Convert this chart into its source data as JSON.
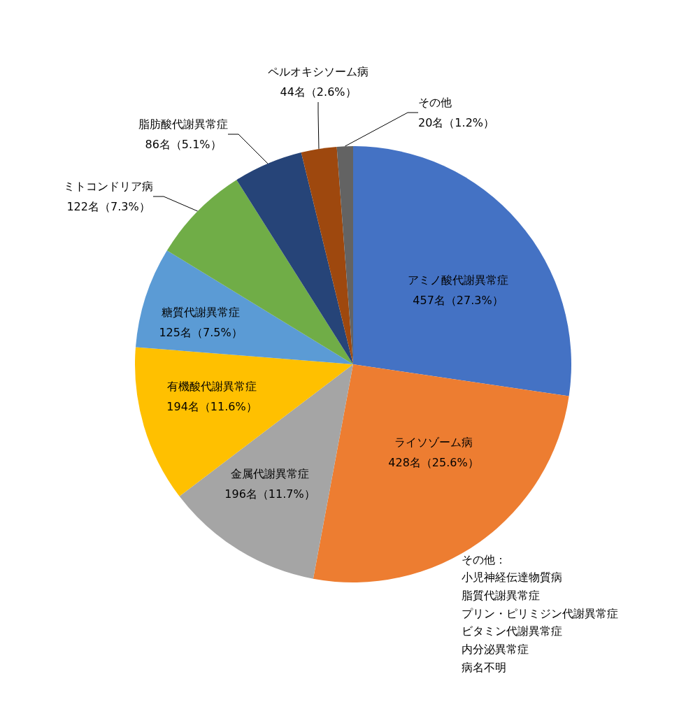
{
  "chart_data": {
    "type": "pie",
    "categories": [
      "アミノ酸代謝異常症",
      "ライソゾーム病",
      "金属代謝異常症",
      "有機酸代謝異常症",
      "糖質代謝異常症",
      "ミトコンドリア病",
      "脂肪酸代謝異常症",
      "ペルオキシソーム病",
      "その他"
    ],
    "values": [
      457,
      428,
      196,
      194,
      125,
      122,
      86,
      44,
      20
    ],
    "value_labels": [
      "457名（27.3%）",
      "428名（25.6%）",
      "196名（11.7%）",
      "194名（11.6%）",
      "125名（7.5%）",
      "122名（7.3%）",
      "86名（5.1%）",
      "44名（2.6%）",
      "20名（1.2%）"
    ],
    "colors": [
      "#4472c4",
      "#ed7d31",
      "#a5a5a5",
      "#ffc000",
      "#5b9bd5",
      "#70ad47",
      "#264478",
      "#9e480e",
      "#636363"
    ],
    "annotations": [
      "その他：",
      "小児神経伝達物質病",
      "脂質代謝異常症",
      "プリン・ピリミジン代謝異常症",
      "ビタミン代謝異常症",
      "内分泌異常症",
      "病名不明"
    ]
  }
}
